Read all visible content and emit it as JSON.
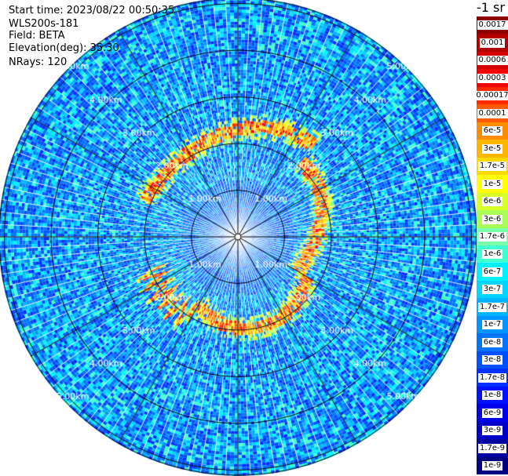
{
  "header": {
    "start_time": "Start time: 2023/08/22 00:50:35",
    "instrument": "WLS200s-181",
    "field": "Field: BETA",
    "elevation": "Elevation(deg): 35.30",
    "nrays": "NRays: 120"
  },
  "colorbar": {
    "title": "-1 sr",
    "labels": [
      "0.0017",
      "0.001",
      "0.0006",
      "0.0003",
      "0.00017",
      "0.0001",
      "6e-5",
      "3e-5",
      "1.7e-5",
      "1e-5",
      "6e-6",
      "3e-6",
      "1.7e-6",
      "1e-6",
      "6e-7",
      "3e-7",
      "1.7e-7",
      "1e-7",
      "6e-8",
      "3e-8",
      "1.7e-8",
      "1e-8",
      "6e-9",
      "3e-9",
      "1.7e-9",
      "1e-9"
    ],
    "colors": [
      "#8b0000",
      "#b20000",
      "#d40000",
      "#f00000",
      "#ff2a00",
      "#ff5a00",
      "#ff8c00",
      "#ffb400",
      "#ffd800",
      "#ffff00",
      "#d8ff28",
      "#a8ff55",
      "#7cffaa",
      "#40ffd0",
      "#00f0ff",
      "#00d4ff",
      "#00b4ff",
      "#0094ff",
      "#0074ff",
      "#0050ff",
      "#0030ff",
      "#0010ff",
      "#0000e8",
      "#0000c8",
      "#0000a0",
      "#000080"
    ]
  },
  "chart_data": {
    "type": "heatmap",
    "projection": "polar PPI",
    "field": "BETA",
    "units": "-1 sr",
    "scale": "log",
    "elevation_deg": 35.3,
    "n_rays": 120,
    "range_max_km": 5.0,
    "range_rings_km": [
      1.0,
      2.0,
      3.0,
      4.0,
      5.0
    ],
    "ring_labels": [
      "1.00km",
      "2.00km",
      "3.00km",
      "4.00km",
      "5.00km"
    ],
    "spokes_deg": [
      0,
      30,
      60,
      90,
      120,
      150,
      180,
      210,
      240,
      270,
      300,
      330
    ],
    "high_backscatter_arc": {
      "range_km": [
        1.8,
        2.5
      ],
      "azimuth_deg": [
        290,
        220
      ],
      "value_range": [
        1e-05,
        0.001
      ]
    },
    "background_value_range": [
      1e-08,
      1e-07
    ]
  }
}
